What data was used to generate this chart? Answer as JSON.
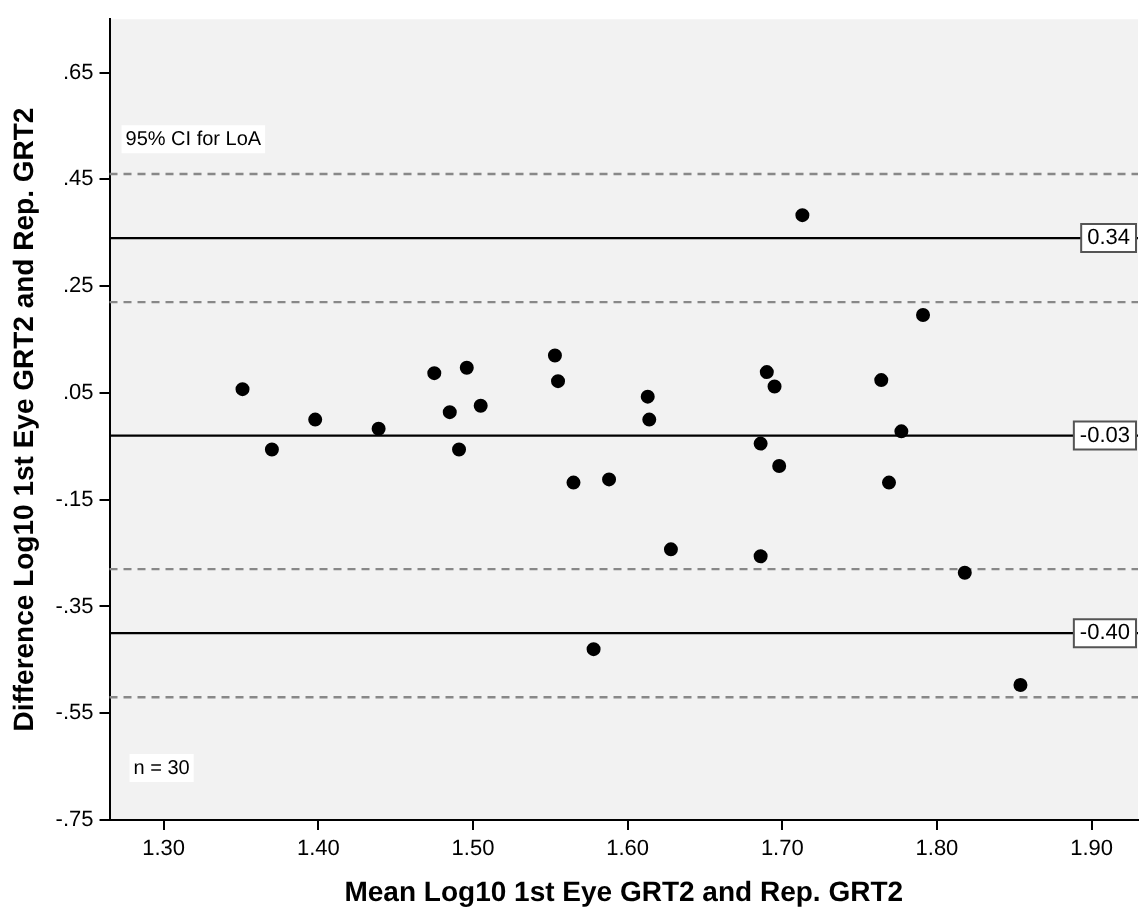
{
  "chart_data": {
    "type": "scatter",
    "xlabel": "Mean Log10 1st Eye GRT2 and Rep. GRT2",
    "ylabel": "Difference Log10 1st Eye GRT2 and Rep. GRT2",
    "x": [
      1.351,
      1.398,
      1.439,
      1.475,
      1.496,
      1.485,
      1.505,
      1.553,
      1.555,
      1.37,
      1.491,
      1.565,
      1.588,
      1.578,
      1.713,
      1.791,
      1.613,
      1.614,
      1.69,
      1.695,
      1.764,
      1.777,
      1.686,
      1.698,
      1.769,
      1.628,
      1.686,
      1.818,
      1.854
    ],
    "series": [
      {
        "color": "#000000",
        "values": [
          0.057,
          0.0,
          -0.017,
          0.087,
          0.097,
          0.014,
          0.026,
          0.12,
          0.072,
          -0.056,
          -0.056,
          -0.118,
          -0.112,
          -0.43,
          0.383,
          0.196,
          0.043,
          0.0,
          0.089,
          0.062,
          0.074,
          -0.022,
          -0.045,
          -0.087,
          -0.118,
          -0.243,
          -0.256,
          -0.287,
          -0.497
        ]
      }
    ],
    "xlim": [
      1.265,
      1.93
    ],
    "ylim": [
      -0.75,
      0.75
    ],
    "xticks": [
      {
        "value": 1.3,
        "label": "1.30"
      },
      {
        "value": 1.4,
        "label": "1.40"
      },
      {
        "value": 1.5,
        "label": "1.50"
      },
      {
        "value": 1.6,
        "label": "1.60"
      },
      {
        "value": 1.7,
        "label": "1.70"
      },
      {
        "value": 1.8,
        "label": "1.80"
      },
      {
        "value": 1.9,
        "label": "1.90"
      }
    ],
    "yticks": [
      {
        "value": 0.65,
        "label": ".65"
      },
      {
        "value": 0.45,
        "label": ".45"
      },
      {
        "value": 0.25,
        "label": ".25"
      },
      {
        "value": 0.05,
        "label": ".05"
      },
      {
        "value": -0.15,
        "label": "-.15"
      },
      {
        "value": -0.35,
        "label": "-.35"
      },
      {
        "value": -0.55,
        "label": "-.55"
      },
      {
        "value": -0.75,
        "label": "-.75"
      }
    ],
    "ref_lines": [
      {
        "axis": "y",
        "value": 0.34,
        "label": "0.34",
        "line_style": "solid",
        "color": "#000000"
      },
      {
        "axis": "y",
        "value": -0.03,
        "label": "-0.03",
        "line_style": "solid",
        "color": "#000000"
      },
      {
        "axis": "y",
        "value": -0.4,
        "label": "-0.40",
        "line_style": "solid",
        "color": "#000000"
      },
      {
        "axis": "y",
        "value": 0.46,
        "line_style": "dashed",
        "color": "#888888"
      },
      {
        "axis": "y",
        "value": 0.22,
        "line_style": "dashed",
        "color": "#888888"
      },
      {
        "axis": "y",
        "value": -0.28,
        "line_style": "dashed",
        "color": "#888888"
      },
      {
        "axis": "y",
        "value": -0.52,
        "line_style": "dashed",
        "color": "#888888"
      }
    ],
    "annotations": [
      "95% CI for LoA",
      "n = 30"
    ],
    "grid": false,
    "legend": false,
    "marker": "circle"
  }
}
